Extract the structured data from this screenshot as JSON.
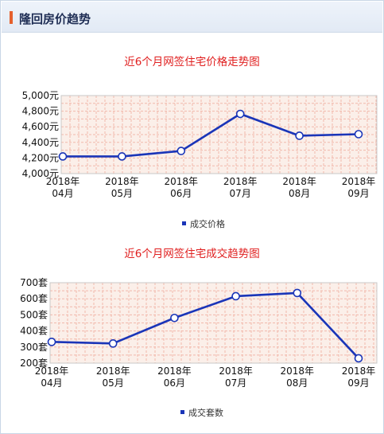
{
  "header": {
    "title": "隆回房价趋势"
  },
  "chart_data": [
    {
      "type": "line",
      "title": "近6个月网签住宅价格走势图",
      "categories": [
        "2018年\n04月",
        "2018年\n05月",
        "2018年\n06月",
        "2018年\n07月",
        "2018年\n08月",
        "2018年\n09月"
      ],
      "series": [
        {
          "name": "成交价格",
          "values": [
            4220,
            4220,
            4290,
            4765,
            4485,
            4505
          ]
        }
      ],
      "ylim": [
        4000,
        5000
      ],
      "yticks": [
        "4,000元",
        "4,200元",
        "4,400元",
        "4,600元",
        "4,800元",
        "5,000元"
      ],
      "line_color": "#1a35b8",
      "grid": true
    },
    {
      "type": "line",
      "title": "近6个月网签住宅成交趋势图",
      "categories": [
        "2018年\n04月",
        "2018年\n05月",
        "2018年\n06月",
        "2018年\n07月",
        "2018年\n08月",
        "2018年\n09月"
      ],
      "series": [
        {
          "name": "成交套数",
          "values": [
            332,
            322,
            481,
            616,
            636,
            230
          ]
        }
      ],
      "ylim": [
        200,
        700
      ],
      "yticks": [
        "200套",
        "300套",
        "400套",
        "500套",
        "600套",
        "700套"
      ],
      "line_color": "#1a35b8",
      "grid": true
    }
  ]
}
